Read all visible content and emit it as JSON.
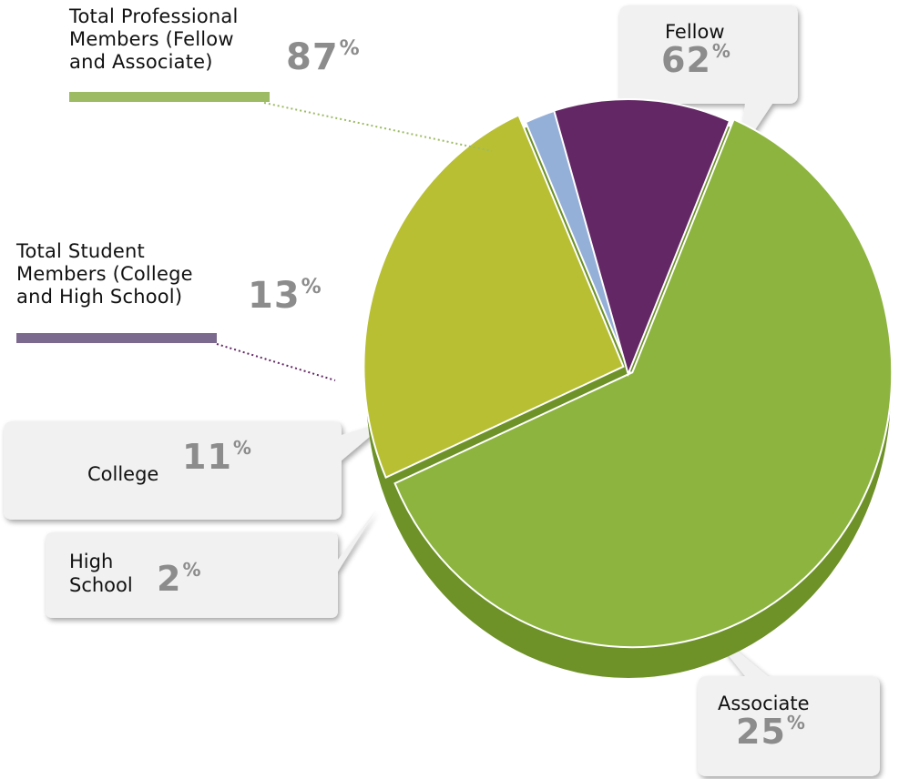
{
  "chart_data": {
    "type": "pie",
    "slices": [
      {
        "label": "Fellow",
        "value": 62,
        "color": "#8db43f"
      },
      {
        "label": "Associate",
        "value": 25,
        "color": "#b8bf33"
      },
      {
        "label": "High School",
        "value": 2,
        "color": "#95b0d8"
      },
      {
        "label": "College",
        "value": 11,
        "color": "#632765"
      }
    ],
    "groups": [
      {
        "label_lines": [
          "Total Professional",
          "Members (Fellow",
          "and Associate)"
        ],
        "value": 87,
        "color": "#9cbb63"
      },
      {
        "label_lines": [
          "Total Student",
          "Members (College",
          "and High School)"
        ],
        "value": 13,
        "color": "#7b6a8e"
      }
    ],
    "callouts": {
      "fellow": {
        "label_lines": [
          "Fellow"
        ],
        "value": "62",
        "unit": "%"
      },
      "associate": {
        "label_lines": [
          "Associate"
        ],
        "value": "25",
        "unit": "%"
      },
      "college": {
        "label_lines": [
          "College"
        ],
        "value": "11",
        "unit": "%"
      },
      "high_school": {
        "label_lines": [
          "High",
          "School"
        ],
        "value": "2",
        "unit": "%"
      }
    },
    "percent_symbol": "%"
  }
}
